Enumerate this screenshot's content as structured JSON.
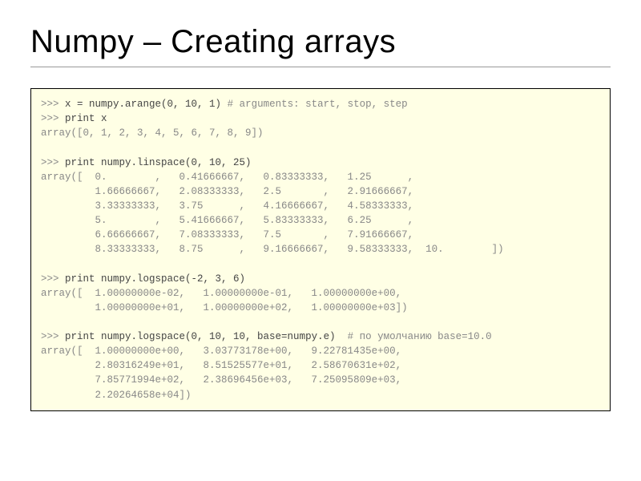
{
  "slide": {
    "title": "Numpy – Creating arrays",
    "title_fontsize": 40,
    "title_color": "#000000",
    "underline_color": "#999999",
    "code_block": {
      "background_color": "#ffffe5",
      "border_color": "#000000",
      "font_family": "Courier New",
      "font_size": 12.5,
      "line_height": 1.45,
      "prompt_color": "#888888",
      "code_color": "#444444",
      "comment_color": "#888888",
      "output_color": "#888888",
      "lines": [
        {
          "t": "code",
          "prompt": ">>> ",
          "text": "x = numpy.arange(0, 10, 1) ",
          "comment": "# arguments: start, stop, step"
        },
        {
          "t": "code",
          "prompt": ">>> ",
          "text": "print x"
        },
        {
          "t": "out",
          "text": "array([0, 1, 2, 3, 4, 5, 6, 7, 8, 9])"
        },
        {
          "t": "blank"
        },
        {
          "t": "code",
          "prompt": ">>> ",
          "text": "print numpy.linspace(0, 10, 25)"
        },
        {
          "t": "out",
          "text": "array([  0.        ,   0.41666667,   0.83333333,   1.25      ,"
        },
        {
          "t": "out",
          "text": "         1.66666667,   2.08333333,   2.5       ,   2.91666667,"
        },
        {
          "t": "out",
          "text": "         3.33333333,   3.75      ,   4.16666667,   4.58333333,"
        },
        {
          "t": "out",
          "text": "         5.        ,   5.41666667,   5.83333333,   6.25      ,"
        },
        {
          "t": "out",
          "text": "         6.66666667,   7.08333333,   7.5       ,   7.91666667,"
        },
        {
          "t": "out",
          "text": "         8.33333333,   8.75      ,   9.16666667,   9.58333333,  10.        ])"
        },
        {
          "t": "blank"
        },
        {
          "t": "code",
          "prompt": ">>> ",
          "text": "print numpy.logspace(-2, 3, 6)"
        },
        {
          "t": "out",
          "text": "array([  1.00000000e-02,   1.00000000e-01,   1.00000000e+00,"
        },
        {
          "t": "out",
          "text": "         1.00000000e+01,   1.00000000e+02,   1.00000000e+03])"
        },
        {
          "t": "blank"
        },
        {
          "t": "code",
          "prompt": ">>> ",
          "text": "print numpy.logspace(0, 10, 10, base=numpy.e)  ",
          "comment": "# по умолчанию base=10.0"
        },
        {
          "t": "out",
          "text": "array([  1.00000000e+00,   3.03773178e+00,   9.22781435e+00,"
        },
        {
          "t": "out",
          "text": "         2.80316249e+01,   8.51525577e+01,   2.58670631e+02,"
        },
        {
          "t": "out",
          "text": "         7.85771994e+02,   2.38696456e+03,   7.25095809e+03,"
        },
        {
          "t": "out",
          "text": "         2.20264658e+04])"
        }
      ]
    }
  }
}
